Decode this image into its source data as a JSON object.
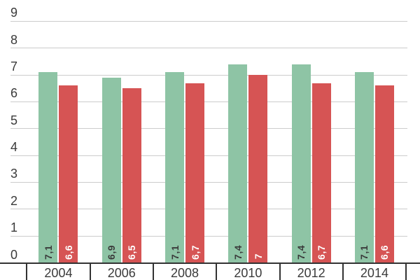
{
  "chart_data": {
    "type": "bar",
    "title": "",
    "xlabel": "",
    "ylabel": "",
    "categories": [
      "2004",
      "2006",
      "2008",
      "2010",
      "2012",
      "2014"
    ],
    "series": [
      {
        "name": "green-series",
        "color": "#8EC4A5",
        "values": [
          7.1,
          6.9,
          7.1,
          7.4,
          7.4,
          7.1
        ],
        "value_labels": [
          "7,1",
          "6,9",
          "7,1",
          "7,4",
          "7,4",
          "7,1"
        ],
        "value_label_color": "#3A3A3A"
      },
      {
        "name": "red-series",
        "color": "#D65454",
        "values": [
          6.6,
          6.5,
          6.7,
          7.0,
          6.7,
          6.6
        ],
        "value_labels": [
          "6,6",
          "6,5",
          "6,7",
          "7",
          "6,7",
          "6,6"
        ],
        "value_label_color": "#FFFFFF"
      }
    ],
    "ylim": [
      0,
      9
    ],
    "yticks": [
      "0",
      "1",
      "2",
      "3",
      "4",
      "5",
      "6",
      "7",
      "8",
      "9"
    ],
    "grid": true,
    "legend": "none",
    "decimal_separator": ","
  },
  "style": {
    "background": "#FFFFFF",
    "gridline_color": "#CCCCCC",
    "axis_line_color": "#333333",
    "tick_label_color": "#3A3A3A"
  }
}
